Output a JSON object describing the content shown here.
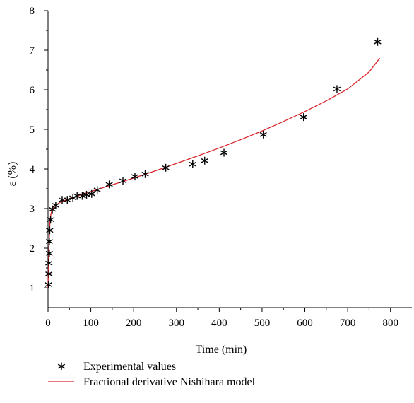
{
  "chart_data": {
    "type": "scatter",
    "title": "",
    "xlabel": "Time (min)",
    "ylabel": "ε (%)",
    "xlim": [
      0,
      850
    ],
    "ylim": [
      0.5,
      8
    ],
    "x_ticks": [
      0,
      100,
      200,
      300,
      400,
      500,
      600,
      700,
      800
    ],
    "y_ticks": [
      1,
      2,
      3,
      4,
      5,
      6,
      7,
      8
    ],
    "grid": false,
    "legend_position": "bottom",
    "series": [
      {
        "name": "Experimental values",
        "kind": "scatter",
        "marker": "asterisk",
        "color": "#000000",
        "points": [
          [
            1,
            1.08
          ],
          [
            2,
            1.35
          ],
          [
            2,
            1.62
          ],
          [
            3,
            1.87
          ],
          [
            3,
            2.17
          ],
          [
            4,
            2.45
          ],
          [
            6,
            2.72
          ],
          [
            10,
            2.98
          ],
          [
            18,
            3.08
          ],
          [
            33,
            3.22
          ],
          [
            45,
            3.22
          ],
          [
            58,
            3.27
          ],
          [
            68,
            3.32
          ],
          [
            80,
            3.32
          ],
          [
            90,
            3.35
          ],
          [
            102,
            3.37
          ],
          [
            115,
            3.47
          ],
          [
            143,
            3.61
          ],
          [
            175,
            3.7
          ],
          [
            203,
            3.81
          ],
          [
            227,
            3.87
          ],
          [
            275,
            4.03
          ],
          [
            338,
            4.12
          ],
          [
            366,
            4.21
          ],
          [
            411,
            4.41
          ],
          [
            503,
            4.87
          ],
          [
            597,
            5.31
          ],
          [
            675,
            6.02
          ],
          [
            770,
            7.21
          ]
        ]
      },
      {
        "name": "Fractional derivative Nishihara model",
        "kind": "line",
        "color": "#d9252b",
        "points": [
          [
            0,
            1.0
          ],
          [
            1,
            1.5
          ],
          [
            2,
            1.95
          ],
          [
            3,
            2.3
          ],
          [
            4,
            2.55
          ],
          [
            5,
            2.72
          ],
          [
            7,
            2.88
          ],
          [
            10,
            2.98
          ],
          [
            15,
            3.05
          ],
          [
            20,
            3.1
          ],
          [
            30,
            3.17
          ],
          [
            50,
            3.25
          ],
          [
            75,
            3.34
          ],
          [
            100,
            3.43
          ],
          [
            150,
            3.6
          ],
          [
            200,
            3.77
          ],
          [
            250,
            3.95
          ],
          [
            300,
            4.14
          ],
          [
            350,
            4.33
          ],
          [
            400,
            4.53
          ],
          [
            450,
            4.74
          ],
          [
            500,
            4.96
          ],
          [
            550,
            5.2
          ],
          [
            600,
            5.45
          ],
          [
            650,
            5.72
          ],
          [
            700,
            6.02
          ],
          [
            750,
            6.45
          ],
          [
            775,
            6.8
          ]
        ]
      }
    ]
  }
}
